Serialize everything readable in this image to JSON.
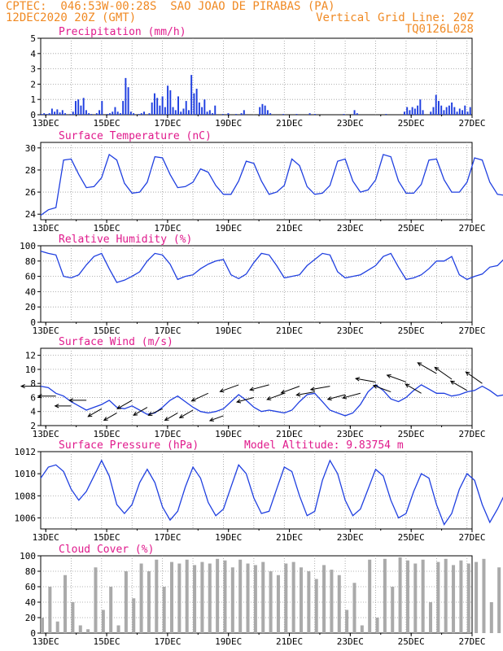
{
  "header": {
    "line1_left": "CPTEC:  046:53W-00:28S  SAO JOAO DE PIRABAS (PA)",
    "line2_left": "12DEC2020 20Z (GMT)",
    "line2_right": "Vertical Grid Line: 20Z",
    "line3_right": "TQ0126L028"
  },
  "colors": {
    "header": "#f08a24",
    "panel_title": "#e01a8c",
    "series": "#1f3fe0",
    "wind_arrow": "#000000",
    "cloud_fill": "#aaaaaa",
    "grid": "#9a9a9a"
  },
  "chart_data": [
    {
      "type": "bar",
      "title": "Precipitation (mm/h)",
      "x_ticks": [
        "13DEC",
        "15DEC",
        "17DEC",
        "19DEC",
        "21DEC",
        "23DEC",
        "25DEC",
        "27DEC"
      ],
      "ylim": [
        0,
        5
      ],
      "y_ticks": [
        0,
        1,
        2,
        3,
        4,
        5
      ],
      "values": [
        0.05,
        0.1,
        0.05,
        0.1,
        0.4,
        0.2,
        0.35,
        0.15,
        0.3,
        0.1,
        0.0,
        0.05,
        0.2,
        0.9,
        1.0,
        0.6,
        1.1,
        0.3,
        0.1,
        0.05,
        0.0,
        0.1,
        0.3,
        0.9,
        0.0,
        0.05,
        0.1,
        0.2,
        0.5,
        0.2,
        0.1,
        0.9,
        2.4,
        1.8,
        0.2,
        0.1,
        0.0,
        0.05,
        0.1,
        0.2,
        0.0,
        0.1,
        0.8,
        1.4,
        1.1,
        0.6,
        1.2,
        0.5,
        1.9,
        1.6,
        0.5,
        0.3,
        1.2,
        0.2,
        0.4,
        0.9,
        0.3,
        2.6,
        1.4,
        1.7,
        0.8,
        0.5,
        1.0,
        0.2,
        0.3,
        0.1,
        0.6,
        0.0,
        0.0,
        0.05,
        0.0,
        0.1,
        0.0,
        0.0,
        0.05,
        0.0,
        0.1,
        0.3,
        0.0,
        0.0,
        0.0,
        0.0,
        0.0,
        0.5,
        0.7,
        0.6,
        0.3,
        0.1,
        0.0,
        0.0,
        0.0,
        0.0,
        0.05,
        0.0,
        0.0,
        0.0,
        0.0,
        0.05,
        0.0,
        0.0,
        0.0,
        0.0,
        0.1,
        0.0,
        0.05,
        0.0,
        0.0,
        0.0,
        0.0,
        0.0,
        0.0,
        0.0,
        0.0,
        0.0,
        0.0,
        0.05,
        0.0,
        0.0,
        0.0,
        0.3,
        0.1,
        0.0,
        0.0,
        0.0,
        0.0,
        0.0,
        0.0,
        0.0,
        0.0,
        0.0,
        0.0,
        0.05,
        0.0,
        0.0,
        0.0,
        0.0,
        0.0,
        0.0,
        0.2,
        0.5,
        0.3,
        0.5,
        0.4,
        0.6,
        1.0,
        0.3,
        0.0,
        0.0,
        0.2,
        0.5,
        1.3,
        0.9,
        0.6,
        0.3,
        0.5,
        0.6,
        0.8,
        0.5,
        0.2,
        0.4,
        0.3,
        0.6,
        0.2,
        0.5
      ]
    },
    {
      "type": "line",
      "title": "Surface Temperature (nC)",
      "x_ticks": [
        "13DEC",
        "15DEC",
        "17DEC",
        "19DEC",
        "21DEC",
        "23DEC",
        "25DEC",
        "27DEC"
      ],
      "ylim": [
        23.5,
        30.5
      ],
      "y_ticks": [
        24,
        26,
        28,
        30
      ],
      "x_start": 12.833,
      "x_step": 0.25,
      "values": [
        23.9,
        24.4,
        24.6,
        28.9,
        29.0,
        27.6,
        26.4,
        26.5,
        27.3,
        29.4,
        28.9,
        26.8,
        25.9,
        26.0,
        26.9,
        29.2,
        29.1,
        27.6,
        26.4,
        26.5,
        26.9,
        28.1,
        27.8,
        26.6,
        25.8,
        25.8,
        27.0,
        28.8,
        28.6,
        27.0,
        25.8,
        26.0,
        26.6,
        29.0,
        28.4,
        26.5,
        25.8,
        25.9,
        26.6,
        28.8,
        29.0,
        27.0,
        26.0,
        26.2,
        27.1,
        29.4,
        29.2,
        27.0,
        25.9,
        25.9,
        26.7,
        28.9,
        29.0,
        27.1,
        26.0,
        26.0,
        26.9,
        29.1,
        28.9,
        26.9,
        25.8,
        25.7,
        26.8,
        28.9,
        28.7,
        27.0,
        25.8,
        25.7,
        26.6,
        28.8,
        29.0,
        27.0,
        25.9,
        26.0,
        26.6,
        29.0,
        28.9,
        27.1,
        25.9,
        25.9,
        26.9,
        28.7,
        28.6,
        27.0,
        25.9,
        25.8,
        26.6,
        28.6,
        28.5,
        26.8,
        25.8,
        25.9,
        26.8,
        28.9,
        29.0,
        26.9,
        25.9,
        25.9,
        26.6,
        28.9,
        29.0,
        27.1,
        25.7,
        25.9,
        26.6,
        28.8,
        28.8,
        26.9,
        25.8,
        25.8,
        26.6,
        28.6,
        28.6,
        27.0,
        25.8,
        25.8,
        26.5,
        28.6,
        28.4,
        26.7,
        25.7,
        25.8,
        26.5,
        28.5,
        28.4,
        26.9,
        25.9,
        25.9,
        26.6,
        29.0,
        28.9,
        27.0,
        25.8,
        25.8,
        26.9,
        28.9,
        29.3,
        27.1,
        26.0,
        26.0,
        26.9,
        28.4,
        27.9,
        26.4,
        25.7,
        25.8,
        26.8,
        28.0,
        28.8,
        27.5,
        26.0,
        26.0,
        26.8,
        28.6,
        28.2,
        26.8,
        25.9,
        25.9,
        26.6,
        28.8,
        28.1,
        27.2
      ]
    },
    {
      "type": "line",
      "title": "Relative Humidity (%)",
      "x_ticks": [
        "13DEC",
        "15DEC",
        "17DEC",
        "19DEC",
        "21DEC",
        "23DEC",
        "25DEC",
        "27DEC"
      ],
      "ylim": [
        0,
        100
      ],
      "y_ticks": [
        0,
        20,
        40,
        60,
        80,
        100
      ],
      "x_start": 12.833,
      "x_step": 0.25,
      "values": [
        93,
        90,
        88,
        60,
        58,
        62,
        75,
        86,
        90,
        70,
        52,
        55,
        60,
        66,
        80,
        90,
        88,
        76,
        56,
        60,
        62,
        70,
        76,
        80,
        82,
        62,
        57,
        63,
        78,
        90,
        88,
        74,
        58,
        60,
        62,
        74,
        82,
        90,
        88,
        66,
        58,
        60,
        62,
        68,
        74,
        86,
        90,
        72,
        56,
        58,
        62,
        70,
        80,
        80,
        86,
        62,
        56,
        60,
        63,
        72,
        74,
        84,
        78,
        66,
        60,
        62,
        64,
        74,
        86,
        88,
        68,
        60,
        62,
        66,
        76,
        84,
        90,
        70,
        58,
        58,
        62,
        74,
        82,
        88,
        84,
        62,
        58,
        62,
        66,
        76,
        86,
        88,
        70,
        60,
        60,
        62,
        74,
        84,
        86,
        78,
        62,
        60,
        62,
        64,
        76,
        82,
        88,
        72,
        58,
        60,
        62,
        74,
        82,
        80,
        70,
        58,
        60,
        62,
        70,
        80,
        82,
        68,
        58,
        60,
        62,
        72,
        80,
        84,
        70,
        60,
        60,
        64,
        70,
        80,
        78,
        68,
        60,
        62,
        64,
        72,
        82,
        80,
        64,
        60,
        62,
        64,
        76,
        84,
        82,
        66,
        60,
        62,
        64,
        74,
        82,
        78,
        64,
        58,
        62,
        74
      ]
    },
    {
      "type": "line",
      "title": "Surface Wind (m/s)",
      "x_ticks": [
        "13DEC",
        "15DEC",
        "17DEC",
        "19DEC",
        "21DEC",
        "23DEC",
        "25DEC",
        "27DEC"
      ],
      "ylim": [
        2,
        13
      ],
      "y_ticks": [
        2,
        4,
        6,
        8,
        10,
        12
      ],
      "x_start": 12.833,
      "x_step": 0.25,
      "values": [
        7.6,
        7.4,
        6.6,
        6.2,
        5.4,
        4.8,
        4.2,
        4.6,
        5.0,
        5.6,
        4.6,
        4.4,
        4.8,
        4.2,
        3.6,
        3.8,
        4.6,
        5.6,
        6.2,
        5.4,
        4.6,
        4.0,
        3.8,
        4.0,
        4.4,
        5.4,
        6.4,
        5.6,
        4.6,
        4.0,
        4.2,
        4.0,
        3.8,
        4.2,
        5.4,
        6.4,
        6.6,
        5.4,
        4.2,
        3.8,
        3.4,
        3.8,
        5.0,
        6.8,
        7.8,
        7.0,
        5.8,
        5.4,
        6.0,
        7.0,
        7.8,
        7.2,
        6.6,
        6.6,
        6.2,
        6.4,
        6.8,
        7.0,
        7.6,
        7.0,
        6.2,
        6.4,
        6.2,
        6.8,
        7.0,
        7.6,
        7.8,
        7.2,
        6.6,
        6.6,
        6.4,
        6.6,
        6.8,
        7.2,
        7.8,
        7.4,
        6.6,
        6.2,
        6.4,
        6.8,
        7.4,
        7.2,
        6.6,
        6.6,
        6.4,
        7.2,
        7.8,
        8.2,
        7.6,
        6.8,
        6.4,
        6.8,
        7.6,
        8.2,
        7.2,
        6.6,
        6.0,
        6.6,
        7.4,
        8.0,
        7.4,
        6.4,
        5.4,
        6.4,
        7.6,
        8.6,
        11.0,
        10.2,
        8.2,
        6.6,
        5.4,
        6.2,
        7.4,
        8.0,
        7.6,
        6.8,
        6.4,
        6.6,
        7.2,
        8.2,
        8.4,
        7.4,
        6.4,
        7.0,
        8.6,
        11.6,
        10.4,
        8.2,
        6.6,
        6.0,
        6.4,
        6.8,
        7.2,
        8.2,
        9.4,
        8.0,
        6.6,
        6.2,
        6.8,
        7.8,
        8.6,
        9.0,
        7.8,
        6.8,
        6.2,
        6.6,
        7.0,
        8.0,
        9.4,
        9.8,
        8.6,
        7.4,
        7.2,
        7.6,
        8.2,
        9.6,
        7.4,
        7.0,
        6.8,
        7.2,
        7.8
      ]
    },
    {
      "type": "line",
      "title": "Surface Pressure (hPa)",
      "annotation": "Model Altitude: 9.83754 m",
      "x_ticks": [
        "13DEC",
        "15DEC",
        "17DEC",
        "19DEC",
        "21DEC",
        "23DEC",
        "25DEC",
        "27DEC"
      ],
      "ylim": [
        1005,
        1012
      ],
      "y_ticks": [
        1006,
        1008,
        1010,
        1012
      ],
      "x_start": 12.833,
      "x_step": 0.25,
      "values": [
        1009.6,
        1010.6,
        1010.8,
        1010.2,
        1008.6,
        1007.6,
        1008.4,
        1009.8,
        1011.2,
        1009.8,
        1007.2,
        1006.4,
        1007.2,
        1009.2,
        1010.4,
        1009.2,
        1007.0,
        1005.8,
        1006.6,
        1008.8,
        1010.6,
        1009.6,
        1007.4,
        1006.2,
        1006.8,
        1008.8,
        1010.8,
        1010.0,
        1007.8,
        1006.4,
        1006.6,
        1008.6,
        1010.6,
        1010.2,
        1008.0,
        1006.2,
        1006.6,
        1009.4,
        1011.2,
        1010.0,
        1007.6,
        1006.2,
        1006.8,
        1008.6,
        1010.4,
        1009.8,
        1007.6,
        1006.0,
        1006.4,
        1008.4,
        1010.0,
        1009.6,
        1007.2,
        1005.4,
        1006.4,
        1008.6,
        1010.0,
        1009.4,
        1007.2,
        1005.6,
        1006.8,
        1008.2,
        1009.6,
        1009.2,
        1007.0,
        1005.6,
        1006.4,
        1008.0,
        1009.8,
        1009.4,
        1007.2,
        1005.2,
        1006.0,
        1008.2,
        1010.0,
        1009.4,
        1007.2,
        1005.4,
        1006.6,
        1008.6,
        1009.6,
        1009.0,
        1007.0,
        1005.8,
        1006.8,
        1008.8,
        1009.8,
        1008.8,
        1006.8,
        1005.6,
        1006.6,
        1008.4,
        1009.6,
        1008.6,
        1006.6,
        1005.6,
        1006.6,
        1008.2,
        1009.6,
        1008.8,
        1006.6,
        1005.6,
        1006.8,
        1008.8,
        1009.8,
        1008.8,
        1006.8,
        1005.6,
        1006.6,
        1008.6,
        1009.4,
        1008.6,
        1006.4,
        1005.6,
        1006.4,
        1008.2,
        1009.2,
        1008.2,
        1006.4,
        1005.4,
        1006.2,
        1008.0,
        1008.8,
        1008.0,
        1006.6,
        1005.8,
        1006.6,
        1008.0,
        1008.6,
        1007.6,
        1006.2,
        1005.6,
        1006.4,
        1008.2,
        1008.4,
        1007.6,
        1006.6,
        1006.0,
        1006.8,
        1008.2,
        1008.6,
        1007.8,
        1006.6,
        1006.2,
        1007.0,
        1008.0,
        1008.2,
        1007.4,
        1006.4,
        1006.0,
        1006.8,
        1007.8,
        1008.2,
        1007.6,
        1006.8,
        1006.4,
        1007.2,
        1008.2,
        1008.6,
        1008.0
      ]
    },
    {
      "type": "area",
      "title": "Cloud Cover (%)",
      "x_ticks": [
        "13DEC",
        "15DEC",
        "17DEC",
        "19DEC",
        "21DEC",
        "23DEC",
        "25DEC",
        "27DEC"
      ],
      "ylim": [
        0,
        100
      ],
      "y_ticks": [
        0,
        20,
        40,
        60,
        80,
        100
      ],
      "x_start": 12.833,
      "x_step": 0.25,
      "values": [
        20,
        60,
        15,
        75,
        40,
        10,
        5,
        85,
        30,
        60,
        10,
        80,
        45,
        90,
        80,
        95,
        60,
        92,
        90,
        95,
        88,
        92,
        90,
        96,
        94,
        85,
        95,
        90,
        88,
        92,
        80,
        75,
        90,
        92,
        85,
        80,
        70,
        88,
        82,
        75,
        30,
        65,
        10,
        95,
        20,
        96,
        60,
        98,
        94,
        90,
        95,
        40,
        92,
        96,
        88,
        94,
        90,
        92,
        96,
        40,
        85,
        88,
        92,
        90,
        88,
        86,
        82,
        84,
        86,
        85,
        84,
        86,
        88,
        86,
        84,
        85,
        86,
        84,
        85,
        86,
        84,
        88,
        86,
        85,
        84,
        86,
        85,
        86,
        84,
        86,
        88,
        86,
        84,
        86,
        88,
        90,
        88,
        86,
        88,
        90,
        88,
        86,
        88,
        90,
        92,
        90,
        88,
        90,
        92,
        94,
        92,
        90,
        88,
        90,
        92,
        90,
        88,
        92,
        94,
        92,
        90,
        92,
        94,
        92,
        90,
        92,
        90,
        94,
        92,
        90,
        92,
        94,
        96,
        94,
        92,
        94,
        96,
        94,
        92,
        94,
        96,
        98,
        96,
        94,
        96,
        98,
        96,
        94,
        96,
        98,
        96,
        94,
        96,
        95,
        72
      ]
    }
  ],
  "wind_arrows": {
    "note_units": "direction in degrees (meteorological, from), length in m/s",
    "x_start": 12.833,
    "x_step": 0.5,
    "dir": [
      90,
      90,
      90,
      90,
      60,
      60,
      60,
      60,
      65,
      60,
      60,
      65,
      70,
      70,
      75,
      75,
      70,
      70,
      80,
      80,
      75,
      75,
      100,
      110,
      110,
      120,
      120,
      125,
      120,
      125
    ],
    "speed": [
      7.6,
      6.2,
      4.8,
      5.6,
      4.4,
      3.8,
      5.6,
      4.6,
      4.4,
      3.8,
      4.2,
      6.6,
      3.4,
      7.8,
      6.0,
      7.8,
      6.6,
      7.6,
      6.8,
      7.6,
      6.4,
      6.6,
      8.2,
      6.8,
      8.2,
      6.6,
      9.4,
      8.6,
      7.0,
      8.0
    ]
  }
}
